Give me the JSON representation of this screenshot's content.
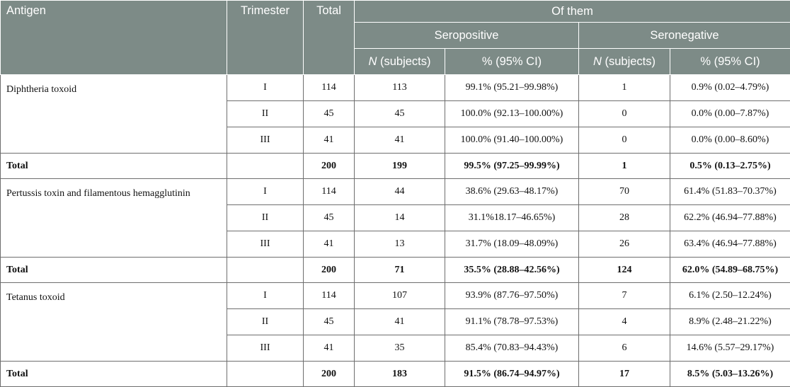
{
  "header": {
    "antigen": "Antigen",
    "trimester": "Trimester",
    "total": "Total",
    "of_them": "Of them",
    "seropositive": "Seropositive",
    "seronegative": "Seronegative",
    "n_letter": "N",
    "n_rest": " (subjects)",
    "pct_ci": "% (95% CI)"
  },
  "groups": [
    {
      "antigen": "Diphtheria toxoid",
      "rows": [
        {
          "trimester": "I",
          "total": "114",
          "pos_n": "113",
          "pos_pct": "99.1% (95.21–99.98%)",
          "neg_n": "1",
          "neg_pct": "0.9% (0.02–4.79%)"
        },
        {
          "trimester": "II",
          "total": "45",
          "pos_n": "45",
          "pos_pct": "100.0% (92.13–100.00%)",
          "neg_n": "0",
          "neg_pct": "0.0% (0.00–7.87%)"
        },
        {
          "trimester": "III",
          "total": "41",
          "pos_n": "41",
          "pos_pct": "100.0% (91.40–100.00%)",
          "neg_n": "0",
          "neg_pct": "0.0% (0.00–8.60%)"
        }
      ],
      "total_row": {
        "label": "Total",
        "trimester": "",
        "total": "200",
        "pos_n": "199",
        "pos_pct": "99.5% (97.25–99.99%)",
        "neg_n": "1",
        "neg_pct": "0.5% (0.13–2.75%)"
      }
    },
    {
      "antigen": "Pertussis toxin and filamentous hemagglutinin",
      "rows": [
        {
          "trimester": "I",
          "total": "114",
          "pos_n": "44",
          "pos_pct": "38.6% (29.63–48.17%)",
          "neg_n": "70",
          "neg_pct": "61.4% (51.83–70.37%)"
        },
        {
          "trimester": "II",
          "total": "45",
          "pos_n": "14",
          "pos_pct": "31.1%18.17–46.65%)",
          "neg_n": "28",
          "neg_pct": "62.2% (46.94–77.88%)"
        },
        {
          "trimester": "III",
          "total": "41",
          "pos_n": "13",
          "pos_pct": "31.7% (18.09–48.09%)",
          "neg_n": "26",
          "neg_pct": "63.4% (46.94–77.88%)"
        }
      ],
      "total_row": {
        "label": "Total",
        "trimester": "",
        "total": "200",
        "pos_n": "71",
        "pos_pct": "35.5% (28.88–42.56%)",
        "neg_n": "124",
        "neg_pct": "62.0% (54.89–68.75%)"
      }
    },
    {
      "antigen": "Tetanus toxoid",
      "rows": [
        {
          "trimester": "I",
          "total": "114",
          "pos_n": "107",
          "pos_pct": "93.9% (87.76–97.50%)",
          "neg_n": "7",
          "neg_pct": "6.1% (2.50–12.24%)"
        },
        {
          "trimester": "II",
          "total": "45",
          "pos_n": "41",
          "pos_pct": "91.1% (78.78–97.53%)",
          "neg_n": "4",
          "neg_pct": "8.9% (2.48–21.22%)"
        },
        {
          "trimester": "III",
          "total": "41",
          "pos_n": "35",
          "pos_pct": "85.4% (70.83–94.43%)",
          "neg_n": "6",
          "neg_pct": "14.6% (5.57–29.17%)"
        }
      ],
      "total_row": {
        "label": "Total",
        "trimester": "",
        "total": "200",
        "pos_n": "183",
        "pos_pct": "91.5% (86.74–94.97%)",
        "neg_n": "17",
        "neg_pct": "8.5% (5.03–13.26%)"
      }
    }
  ]
}
